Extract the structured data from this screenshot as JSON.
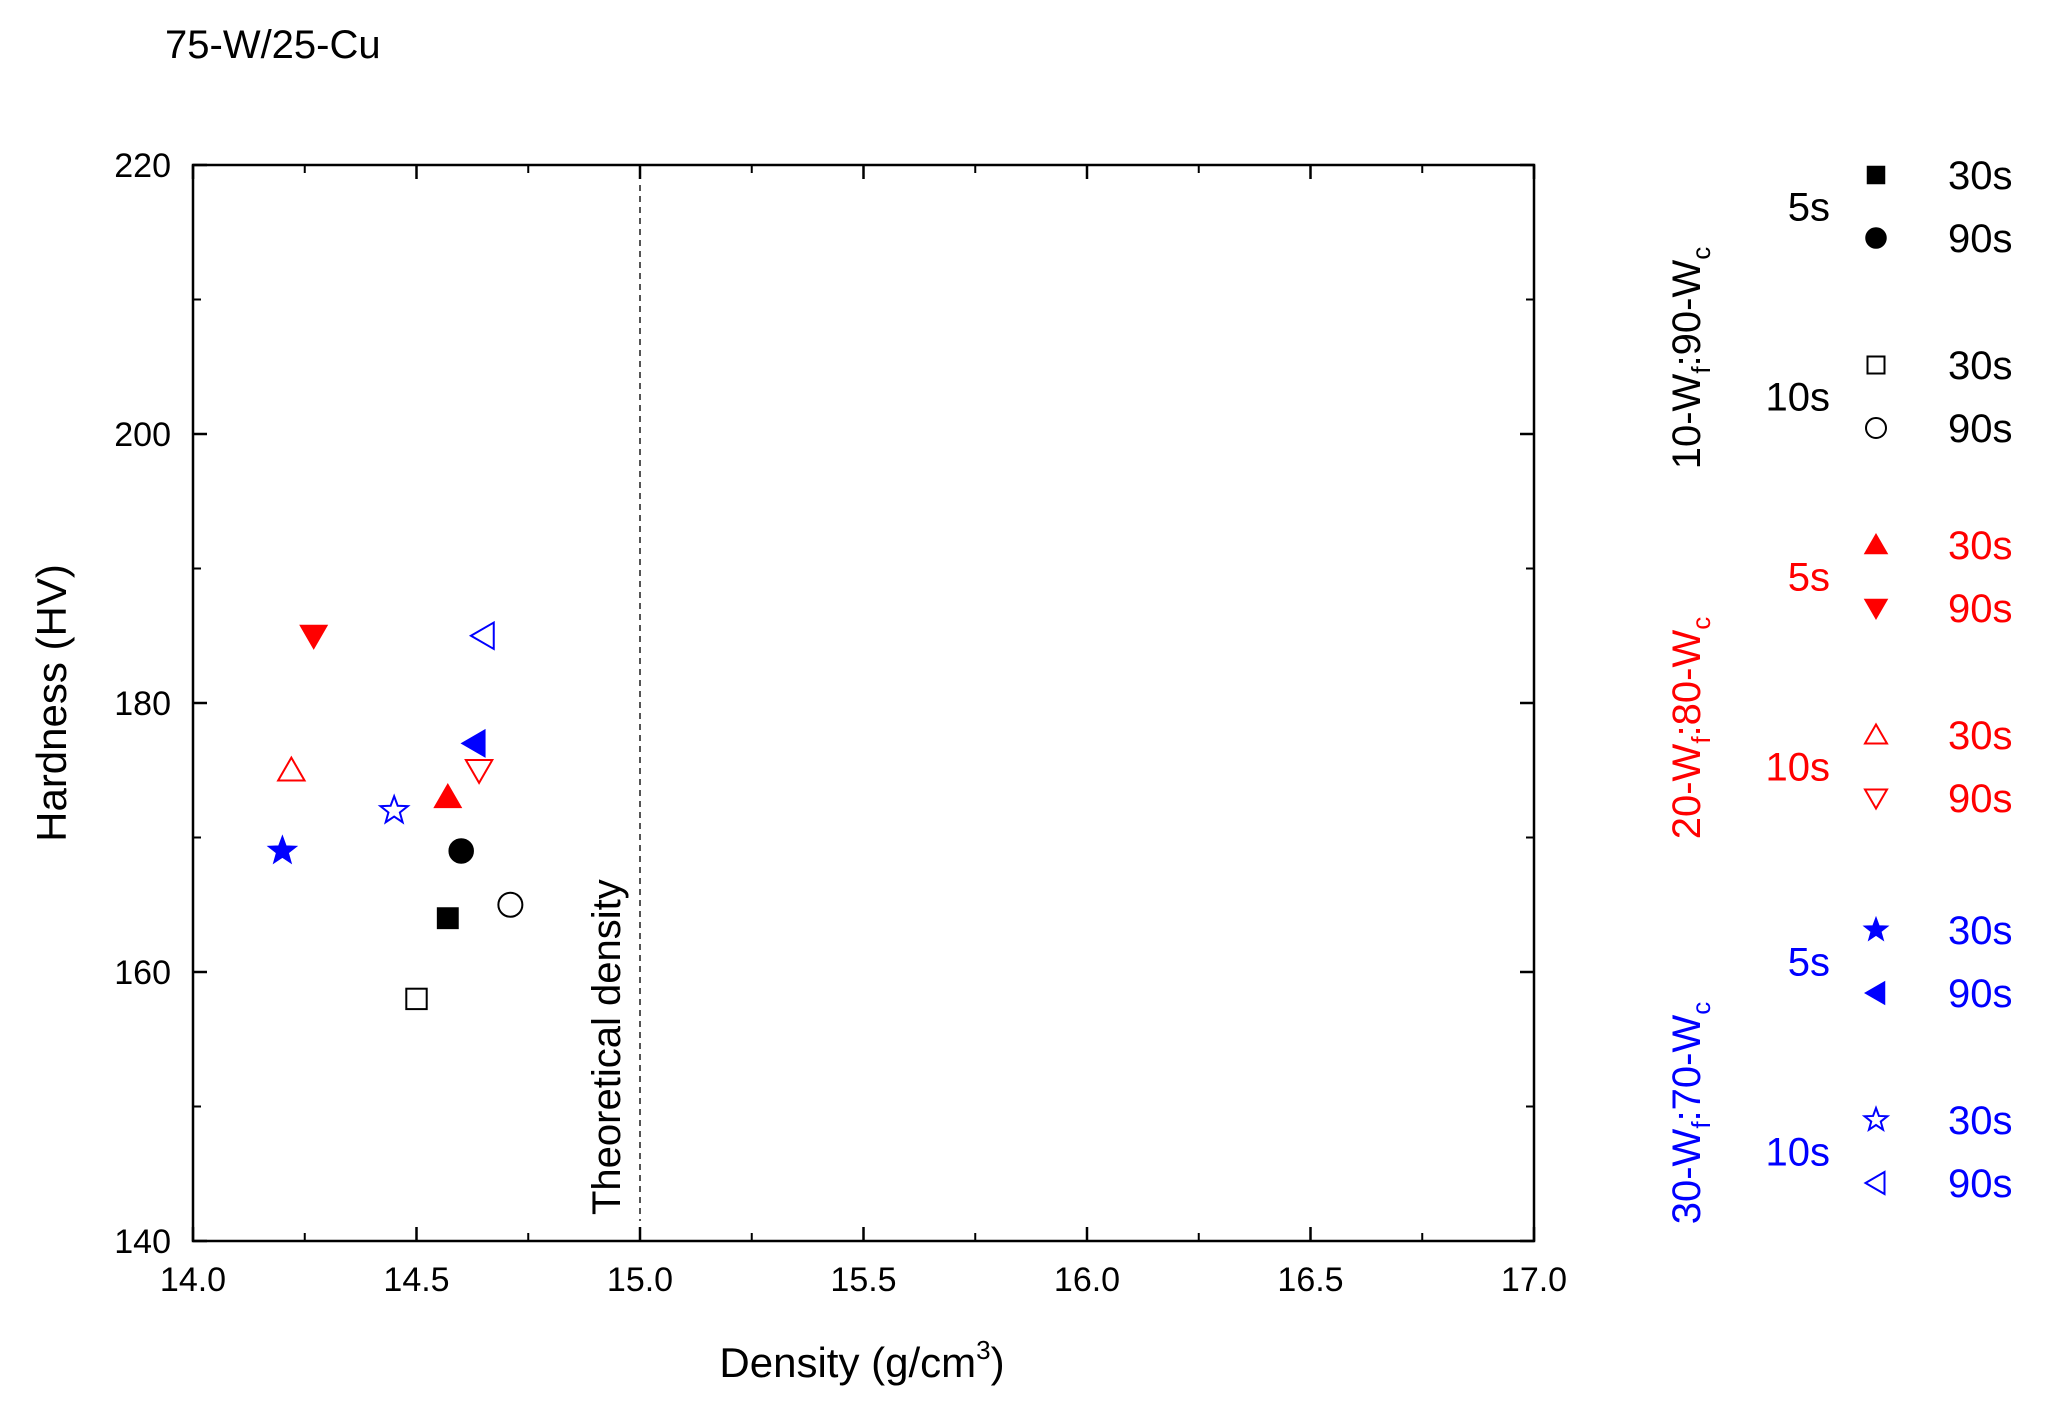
{
  "chart_data": {
    "type": "scatter",
    "title": "75-W/25-Cu",
    "xlabel": "Density (g/cm",
    "xlabel_sup": "3",
    "xlabel_end": ")",
    "ylabel": "Hardness (HV)",
    "xlim": [
      14.0,
      17.0
    ],
    "ylim": [
      140,
      220
    ],
    "xticks": [
      "14.0",
      "14.5",
      "15.0",
      "15.5",
      "16.0",
      "16.5",
      "17.0"
    ],
    "yticks": [
      "140",
      "160",
      "180",
      "200",
      "220"
    ],
    "reference_line": {
      "x": 15.0,
      "label": "Theoretical density",
      "style": "dashed"
    },
    "groups": [
      {
        "name_prefix": "10-W",
        "name_sub1": "f",
        "name_mid": ":90-W",
        "name_sub2": "c",
        "color": "#000000",
        "subgroups": [
          {
            "time": "5s",
            "series": [
              {
                "label": "30s",
                "marker": "square",
                "filled": true,
                "x": 14.57,
                "y": 164
              },
              {
                "label": "90s",
                "marker": "circle",
                "filled": true,
                "x": 14.6,
                "y": 169
              }
            ]
          },
          {
            "time": "10s",
            "series": [
              {
                "label": "30s",
                "marker": "square",
                "filled": false,
                "x": 14.5,
                "y": 158
              },
              {
                "label": "90s",
                "marker": "circle",
                "filled": false,
                "x": 14.71,
                "y": 165
              }
            ]
          }
        ]
      },
      {
        "name_prefix": "20-W",
        "name_sub1": "f",
        "name_mid": ":80-W",
        "name_sub2": "c",
        "color": "#ff0000",
        "subgroups": [
          {
            "time": "5s",
            "series": [
              {
                "label": "30s",
                "marker": "triangle-up",
                "filled": true,
                "x": 14.57,
                "y": 173
              },
              {
                "label": "90s",
                "marker": "triangle-down",
                "filled": true,
                "x": 14.27,
                "y": 185
              }
            ]
          },
          {
            "time": "10s",
            "series": [
              {
                "label": "30s",
                "marker": "triangle-up",
                "filled": false,
                "x": 14.22,
                "y": 175
              },
              {
                "label": "90s",
                "marker": "triangle-down",
                "filled": false,
                "x": 14.64,
                "y": 175
              }
            ]
          }
        ]
      },
      {
        "name_prefix": "30-W",
        "name_sub1": "f",
        "name_mid": ":70-W",
        "name_sub2": "c",
        "color": "#0000ff",
        "subgroups": [
          {
            "time": "5s",
            "series": [
              {
                "label": "30s",
                "marker": "star",
                "filled": true,
                "x": 14.2,
                "y": 169
              },
              {
                "label": "90s",
                "marker": "triangle-left",
                "filled": true,
                "x": 14.63,
                "y": 177
              }
            ]
          },
          {
            "time": "10s",
            "series": [
              {
                "label": "30s",
                "marker": "star",
                "filled": false,
                "x": 14.45,
                "y": 172
              },
              {
                "label": "90s",
                "marker": "triangle-left",
                "filled": false,
                "x": 14.65,
                "y": 185
              }
            ]
          }
        ]
      }
    ]
  }
}
